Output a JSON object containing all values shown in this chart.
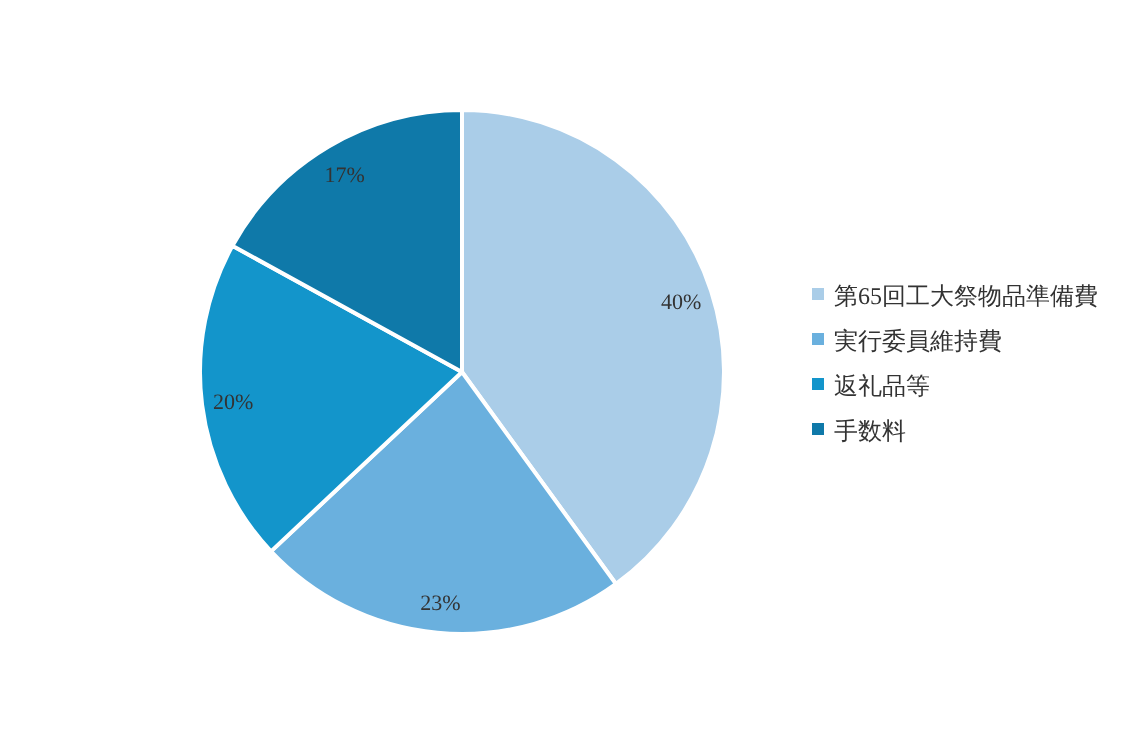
{
  "chart_data": {
    "type": "pie",
    "categories": [
      "第65回工大祭物品準備費",
      "実行委員維持費",
      "返礼品等",
      "手数料"
    ],
    "values": [
      40,
      23,
      20,
      17
    ],
    "value_labels": [
      "40%",
      "23%",
      "20%",
      "17%"
    ],
    "colors": [
      "#aacde8",
      "#6ab0de",
      "#1395cb",
      "#0f79a9"
    ],
    "legend": "right"
  }
}
